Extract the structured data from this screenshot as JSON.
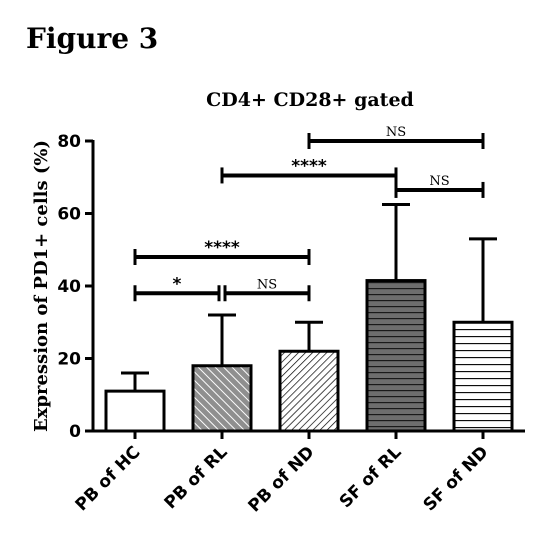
{
  "figure_label": "Figure 3",
  "chart_data": {
    "type": "bar",
    "title": "CD4+ CD28+ gated",
    "ylabel": "Expression of PD1+ cells (%)",
    "xlabel": "",
    "ylim": [
      0,
      80
    ],
    "yticks": [
      "0",
      "20",
      "40",
      "60",
      "80"
    ],
    "categories": [
      "PB of HC",
      "PB of RL",
      "PB of ND",
      "SF of RL",
      "SF of ND"
    ],
    "values": [
      11,
      18,
      22,
      41.5,
      30
    ],
    "error_upper": [
      16,
      32,
      30,
      62.5,
      53
    ],
    "fills": [
      "white",
      "gray-diagonal",
      "white-diagonal",
      "dark-horizontal",
      "white-horizontal"
    ],
    "comparisons": [
      {
        "from": 0,
        "to": 1,
        "y": 38,
        "label": "*"
      },
      {
        "from": 1,
        "to": 2,
        "y": 38,
        "label": "NS"
      },
      {
        "from": 0,
        "to": 2,
        "y": 48,
        "label": "****"
      },
      {
        "from": 1,
        "to": 3,
        "y": 70.5,
        "label": "****"
      },
      {
        "from": 3,
        "to": 4,
        "y": 66.5,
        "label": "NS"
      },
      {
        "from": 2,
        "to": 4,
        "y": 80,
        "label": "NS"
      }
    ]
  }
}
